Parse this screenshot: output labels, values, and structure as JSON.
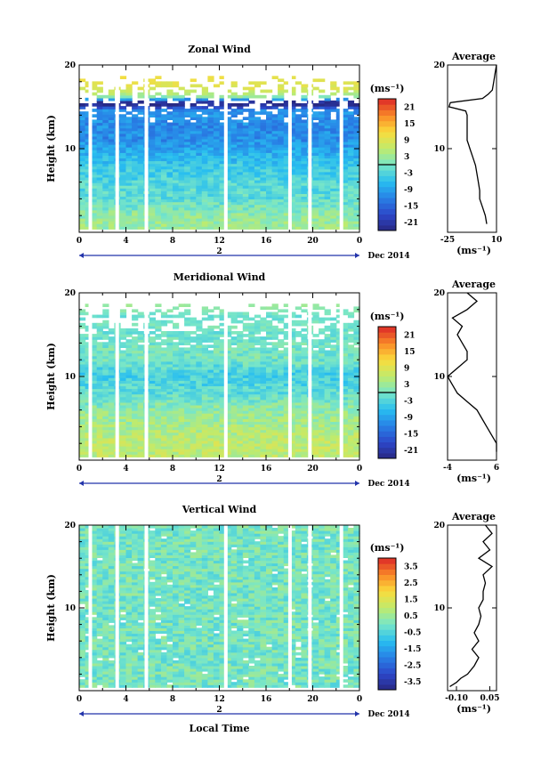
{
  "figure": {
    "date_label": "Dec 2014",
    "xlabel": "Local Time",
    "x_ticks": [
      "0",
      "4",
      "8",
      "12",
      "16",
      "20",
      "0"
    ],
    "date_ticks": [
      "2"
    ]
  },
  "chart_data": [
    {
      "type": "heatmap",
      "title": "Zonal Wind",
      "ylabel": "Height (km)",
      "ylim": [
        0,
        20
      ],
      "y_ticks": [
        "10",
        "20"
      ],
      "xlim": [
        0,
        24
      ],
      "colorbar": {
        "unit": "(ms⁻¹)",
        "range": [
          -24,
          24
        ],
        "ticks": [
          "21",
          "15",
          "9",
          "3",
          "-3",
          "-9",
          "-15",
          "-21"
        ],
        "zero_line": true
      },
      "description_values": {
        "low_level_mean": 9,
        "jet_level_mean": -20,
        "upper_mean": 0
      },
      "profile": {
        "title": "Average",
        "xlabel": "(ms⁻¹)",
        "x_ticks": [
          "-25",
          "10"
        ],
        "xlim": [
          -25,
          10
        ],
        "heights": [
          1,
          2,
          3,
          4,
          5,
          6,
          7,
          8,
          9,
          10,
          10.5,
          11,
          12,
          13,
          14,
          14.5,
          15,
          15.5,
          16,
          16.5,
          17,
          18,
          19,
          20
        ],
        "values": [
          3,
          2,
          0,
          -2,
          -2,
          -3,
          -4,
          -5,
          -7,
          -9,
          -10,
          -11,
          -11,
          -11,
          -11,
          -12,
          -24,
          -23,
          0,
          4,
          7,
          8,
          9,
          10
        ]
      }
    },
    {
      "type": "heatmap",
      "title": "Meridional Wind",
      "ylabel": "Height (km)",
      "ylim": [
        0,
        20
      ],
      "y_ticks": [
        "10",
        "20"
      ],
      "xlim": [
        0,
        24
      ],
      "colorbar": {
        "unit": "(ms⁻¹)",
        "range": [
          -24,
          24
        ],
        "ticks": [
          "21",
          "15",
          "9",
          "3",
          "-3",
          "-9",
          "-15",
          "-21"
        ],
        "zero_line": true
      },
      "description_values": {
        "low_level_mean": 6,
        "mid_level_mean": -3,
        "upper_mean": -5
      },
      "profile": {
        "title": "Average",
        "xlabel": "(ms⁻¹)",
        "x_ticks": [
          "-4",
          "6"
        ],
        "xlim": [
          -4,
          6
        ],
        "heights": [
          1,
          2,
          3,
          4,
          5,
          6,
          7,
          8,
          9,
          10,
          11,
          12,
          13,
          14,
          15,
          16,
          17,
          18,
          19,
          20
        ],
        "values": [
          6,
          6,
          5,
          4,
          3,
          2,
          0,
          -2,
          -3,
          -4,
          -2,
          0,
          0,
          -1,
          -2,
          -1,
          -3,
          0,
          2,
          0
        ]
      }
    },
    {
      "type": "heatmap",
      "title": "Vertical Wind",
      "ylabel": "Height (km)",
      "ylim": [
        0,
        20
      ],
      "y_ticks": [
        "10",
        "20"
      ],
      "xlim": [
        0,
        24
      ],
      "colorbar": {
        "unit": "(ms⁻¹)",
        "range": [
          -4,
          4
        ],
        "ticks": [
          "3.5",
          "2.5",
          "1.5",
          "0.5",
          "-0.5",
          "-1.5",
          "-2.5",
          "-3.5"
        ],
        "zero_line": false
      },
      "description_values": {
        "mean": 0
      },
      "profile": {
        "title": "Average",
        "xlabel": "(ms⁻¹)",
        "x_ticks": [
          "-0.10",
          "0.05"
        ],
        "xlim": [
          -0.14,
          0.08
        ],
        "heights": [
          0.5,
          1,
          1.5,
          2,
          3,
          4,
          5,
          6,
          7,
          8,
          9,
          10,
          11,
          12,
          13,
          14,
          15,
          16,
          17,
          18,
          19,
          20
        ],
        "values": [
          -0.13,
          -0.1,
          -0.08,
          -0.05,
          -0.02,
          0.0,
          -0.03,
          0.0,
          -0.02,
          0.0,
          0.01,
          0.0,
          0.02,
          0.02,
          0.03,
          0.02,
          0.06,
          0.0,
          0.05,
          0.02,
          0.06,
          0.03
        ]
      }
    }
  ]
}
